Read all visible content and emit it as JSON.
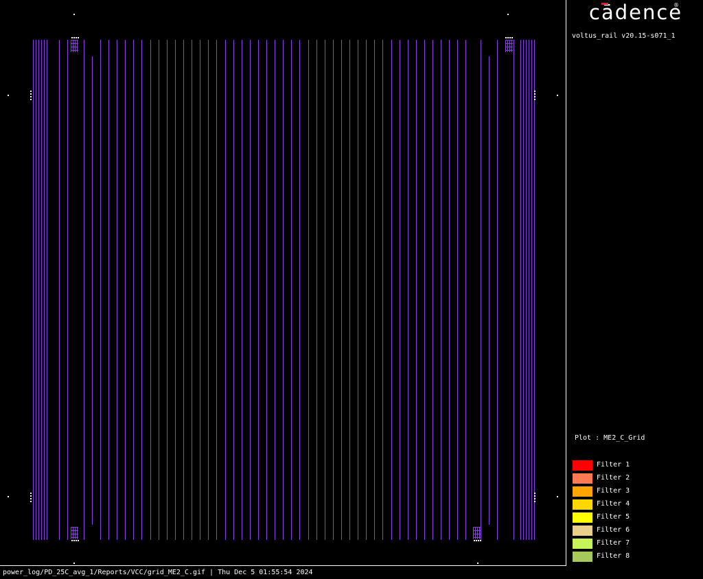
{
  "window": {
    "brand": "cādence",
    "brand_mark": "®",
    "version": "voltus_rail v20.15-s071_1"
  },
  "plot": {
    "label_prefix": "Plot : ",
    "name": "ME2_C_Grid",
    "grid_color": "#8b3fe6",
    "background": "#000000"
  },
  "legend": {
    "items": [
      {
        "label": "Filter 1",
        "color": "#ff0000"
      },
      {
        "label": "Filter 2",
        "color": "#ff7a50"
      },
      {
        "label": "Filter 3",
        "color": "#ffa500"
      },
      {
        "label": "Filter 4",
        "color": "#ffd700"
      },
      {
        "label": "Filter 5",
        "color": "#ffff00"
      },
      {
        "label": "Filter 6",
        "color": "#e8d08a"
      },
      {
        "label": "Filter 7",
        "color": "#c6f25a"
      },
      {
        "label": "Filter 8",
        "color": "#a6c95a"
      }
    ]
  },
  "status": {
    "path": "power_log/PD_25C_avg_1/Reports/VCC/grid_ME2_C.gif",
    "separator": " | ",
    "timestamp": "Thu Dec  5 01:55:54 2024"
  }
}
